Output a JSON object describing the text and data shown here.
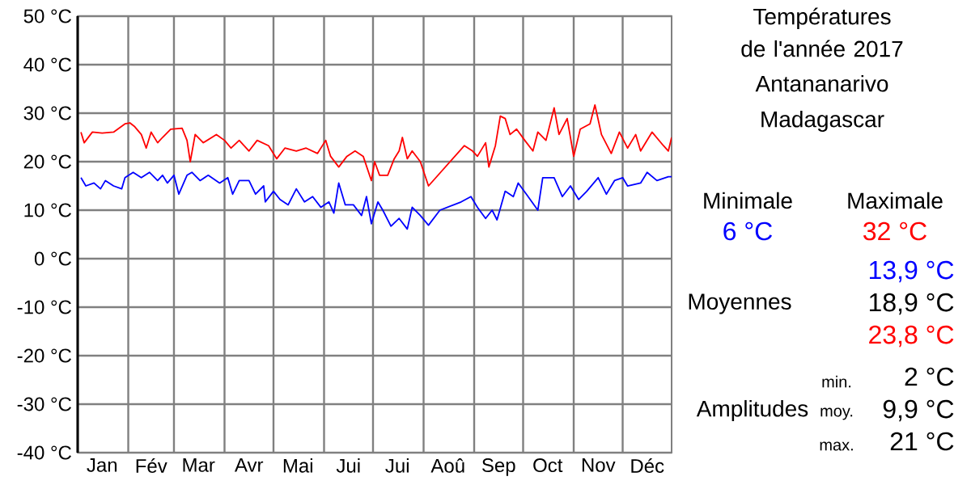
{
  "chart_data": {
    "type": "line",
    "title": "Températures de l'année 2017",
    "subtitle": "Antananarivo Madagascar",
    "xlim": [
      "2017-01-01",
      "2017-12-31"
    ],
    "xticks": [
      {
        "value": "2017-01-01",
        "label": null
      },
      {
        "value": "2017-01-16",
        "label": "Jan"
      },
      {
        "value": "2017-02-01",
        "label": null
      },
      {
        "value": "2017-02-15",
        "label": "Fév"
      },
      {
        "value": "2017-03-01",
        "label": null
      },
      {
        "value": "2017-03-16",
        "label": "Mar"
      },
      {
        "value": "2017-04-01",
        "label": null
      },
      {
        "value": "2017-04-16",
        "label": "Avr"
      },
      {
        "value": "2017-05-01",
        "label": null
      },
      {
        "value": "2017-05-16",
        "label": "Mai"
      },
      {
        "value": "2017-06-01",
        "label": null
      },
      {
        "value": "2017-06-16",
        "label": "Jui"
      },
      {
        "value": "2017-07-01",
        "label": null
      },
      {
        "value": "2017-07-16",
        "label": "Jui"
      },
      {
        "value": "2017-08-01",
        "label": null
      },
      {
        "value": "2017-08-16",
        "label": "Aoû"
      },
      {
        "value": "2017-09-01",
        "label": null
      },
      {
        "value": "2017-09-16",
        "label": "Sep"
      },
      {
        "value": "2017-10-01",
        "label": null
      },
      {
        "value": "2017-10-16",
        "label": "Oct"
      },
      {
        "value": "2017-11-01",
        "label": null
      },
      {
        "value": "2017-11-16",
        "label": "Nov"
      },
      {
        "value": "2017-12-01",
        "label": null
      },
      {
        "value": "2017-12-16",
        "label": "Déc"
      }
    ],
    "ylim": [
      -40,
      50
    ],
    "yticks": [
      {
        "value": -40,
        "label": "-40 °C"
      },
      {
        "value": -30,
        "label": "-30 °C"
      },
      {
        "value": -20,
        "label": "-20 °C"
      },
      {
        "value": -10,
        "label": "-10 °C"
      },
      {
        "value": 0,
        "label": "0 °C"
      },
      {
        "value": 10,
        "label": "10 °C"
      },
      {
        "value": 20,
        "label": "20 °C"
      },
      {
        "value": 30,
        "label": "30 °C"
      },
      {
        "value": 40,
        "label": "40 °C"
      },
      {
        "value": 50,
        "label": "50 °C"
      }
    ],
    "grid": true,
    "marker": "none",
    "line_style": "solid",
    "series": [
      {
        "color": "#ff0000",
        "x": [
          "2017-01-03",
          "2017-01-05",
          "2017-01-10",
          "2017-01-16",
          "2017-01-23",
          "2017-01-30",
          "2017-02-02",
          "2017-02-05",
          "2017-02-09",
          "2017-02-12",
          "2017-02-15",
          "2017-02-19",
          "2017-02-22",
          "2017-02-27",
          "2017-03-06",
          "2017-03-09",
          "2017-03-11",
          "2017-03-14",
          "2017-03-19",
          "2017-03-27",
          "2017-04-01",
          "2017-04-05",
          "2017-04-10",
          "2017-04-16",
          "2017-04-21",
          "2017-04-28",
          "2017-05-03",
          "2017-05-08",
          "2017-05-15",
          "2017-05-21",
          "2017-05-28",
          "2017-06-02",
          "2017-06-05",
          "2017-06-10",
          "2017-06-15",
          "2017-06-20",
          "2017-06-25",
          "2017-06-30",
          "2017-07-02",
          "2017-07-05",
          "2017-07-10",
          "2017-07-14",
          "2017-07-17",
          "2017-07-19",
          "2017-07-22",
          "2017-07-25",
          "2017-07-30",
          "2017-08-04",
          "2017-08-26",
          "2017-08-31",
          "2017-09-03",
          "2017-09-08",
          "2017-09-10",
          "2017-09-14",
          "2017-09-17",
          "2017-09-20",
          "2017-09-23",
          "2017-09-27",
          "2017-10-02",
          "2017-10-07",
          "2017-10-10",
          "2017-10-15",
          "2017-10-20",
          "2017-10-23",
          "2017-10-28",
          "2017-11-01",
          "2017-11-05",
          "2017-11-11",
          "2017-11-14",
          "2017-11-18",
          "2017-11-24",
          "2017-11-29",
          "2017-12-04",
          "2017-12-09",
          "2017-12-12",
          "2017-12-19",
          "2017-12-26",
          "2017-12-29",
          "2017-12-31"
        ],
        "values": [
          26.1,
          23.9,
          26.1,
          25.9,
          26.1,
          27.8,
          28.0,
          27.2,
          25.6,
          22.8,
          26.1,
          23.9,
          25.0,
          26.7,
          26.9,
          24.4,
          20.0,
          25.6,
          23.9,
          25.6,
          24.4,
          22.8,
          24.4,
          22.2,
          24.4,
          23.3,
          20.6,
          22.8,
          22.2,
          22.8,
          21.7,
          24.4,
          21.1,
          18.9,
          21.1,
          22.2,
          21.1,
          16.1,
          20.0,
          17.2,
          17.2,
          20.6,
          22.2,
          25.0,
          20.6,
          22.2,
          20.0,
          15.0,
          23.3,
          22.2,
          21.1,
          23.9,
          18.9,
          23.3,
          29.4,
          28.9,
          25.6,
          26.7,
          24.4,
          22.2,
          26.1,
          24.4,
          31.1,
          25.6,
          28.9,
          21.1,
          26.7,
          27.8,
          31.7,
          25.6,
          21.7,
          26.1,
          22.8,
          25.6,
          22.2,
          26.1,
          23.3,
          22.2,
          25.0
        ]
      },
      {
        "color": "#0000ff",
        "x": [
          "2017-01-03",
          "2017-01-06",
          "2017-01-11",
          "2017-01-15",
          "2017-01-18",
          "2017-01-23",
          "2017-01-28",
          "2017-01-30",
          "2017-02-04",
          "2017-02-09",
          "2017-02-14",
          "2017-02-19",
          "2017-02-22",
          "2017-02-25",
          "2017-03-01",
          "2017-03-04",
          "2017-03-09",
          "2017-03-12",
          "2017-03-17",
          "2017-03-22",
          "2017-03-29",
          "2017-04-03",
          "2017-04-06",
          "2017-04-10",
          "2017-04-16",
          "2017-04-20",
          "2017-04-25",
          "2017-04-26",
          "2017-05-01",
          "2017-05-05",
          "2017-05-10",
          "2017-05-15",
          "2017-05-20",
          "2017-05-25",
          "2017-05-30",
          "2017-06-04",
          "2017-06-07",
          "2017-06-10",
          "2017-06-14",
          "2017-06-19",
          "2017-06-24",
          "2017-06-27",
          "2017-06-30",
          "2017-07-04",
          "2017-07-07",
          "2017-07-12",
          "2017-07-17",
          "2017-07-22",
          "2017-07-25",
          "2017-07-30",
          "2017-08-04",
          "2017-08-11",
          "2017-08-24",
          "2017-08-30",
          "2017-09-03",
          "2017-09-08",
          "2017-09-12",
          "2017-09-15",
          "2017-09-20",
          "2017-09-25",
          "2017-09-28",
          "2017-10-03",
          "2017-10-10",
          "2017-10-13",
          "2017-10-20",
          "2017-10-25",
          "2017-10-30",
          "2017-11-04",
          "2017-11-09",
          "2017-11-16",
          "2017-11-21",
          "2017-11-26",
          "2017-12-01",
          "2017-12-04",
          "2017-12-12",
          "2017-12-16",
          "2017-12-22",
          "2017-12-29",
          "2017-12-31"
        ],
        "values": [
          16.7,
          15.0,
          15.6,
          14.4,
          16.1,
          15.0,
          14.4,
          16.7,
          17.8,
          16.7,
          17.8,
          16.1,
          17.2,
          15.6,
          17.2,
          13.3,
          17.2,
          17.8,
          16.1,
          17.2,
          15.6,
          16.7,
          13.3,
          16.1,
          16.1,
          13.3,
          15.0,
          11.7,
          13.9,
          12.2,
          11.1,
          14.4,
          11.7,
          12.8,
          10.6,
          11.7,
          9.4,
          15.6,
          11.1,
          11.1,
          8.9,
          12.8,
          7.2,
          11.7,
          10.0,
          6.7,
          8.3,
          6.1,
          10.6,
          8.9,
          6.9,
          10.0,
          11.7,
          12.8,
          10.6,
          8.3,
          10.0,
          8.0,
          13.9,
          12.8,
          15.6,
          13.3,
          10.0,
          16.7,
          16.7,
          12.8,
          15.0,
          12.2,
          13.9,
          16.7,
          13.3,
          16.1,
          16.7,
          15.0,
          15.6,
          17.8,
          16.1,
          16.9,
          16.9
        ]
      }
    ],
    "annotations": [
      "Minimale",
      "Maximale",
      "6 °C",
      "32 °C",
      "13,9 °C",
      "Moyennes",
      "18,9 °C",
      "23,8 °C",
      "min.",
      "2 °C",
      "Amplitudes",
      "moy.",
      "9,9 °C",
      "max.",
      "21 °C"
    ]
  }
}
